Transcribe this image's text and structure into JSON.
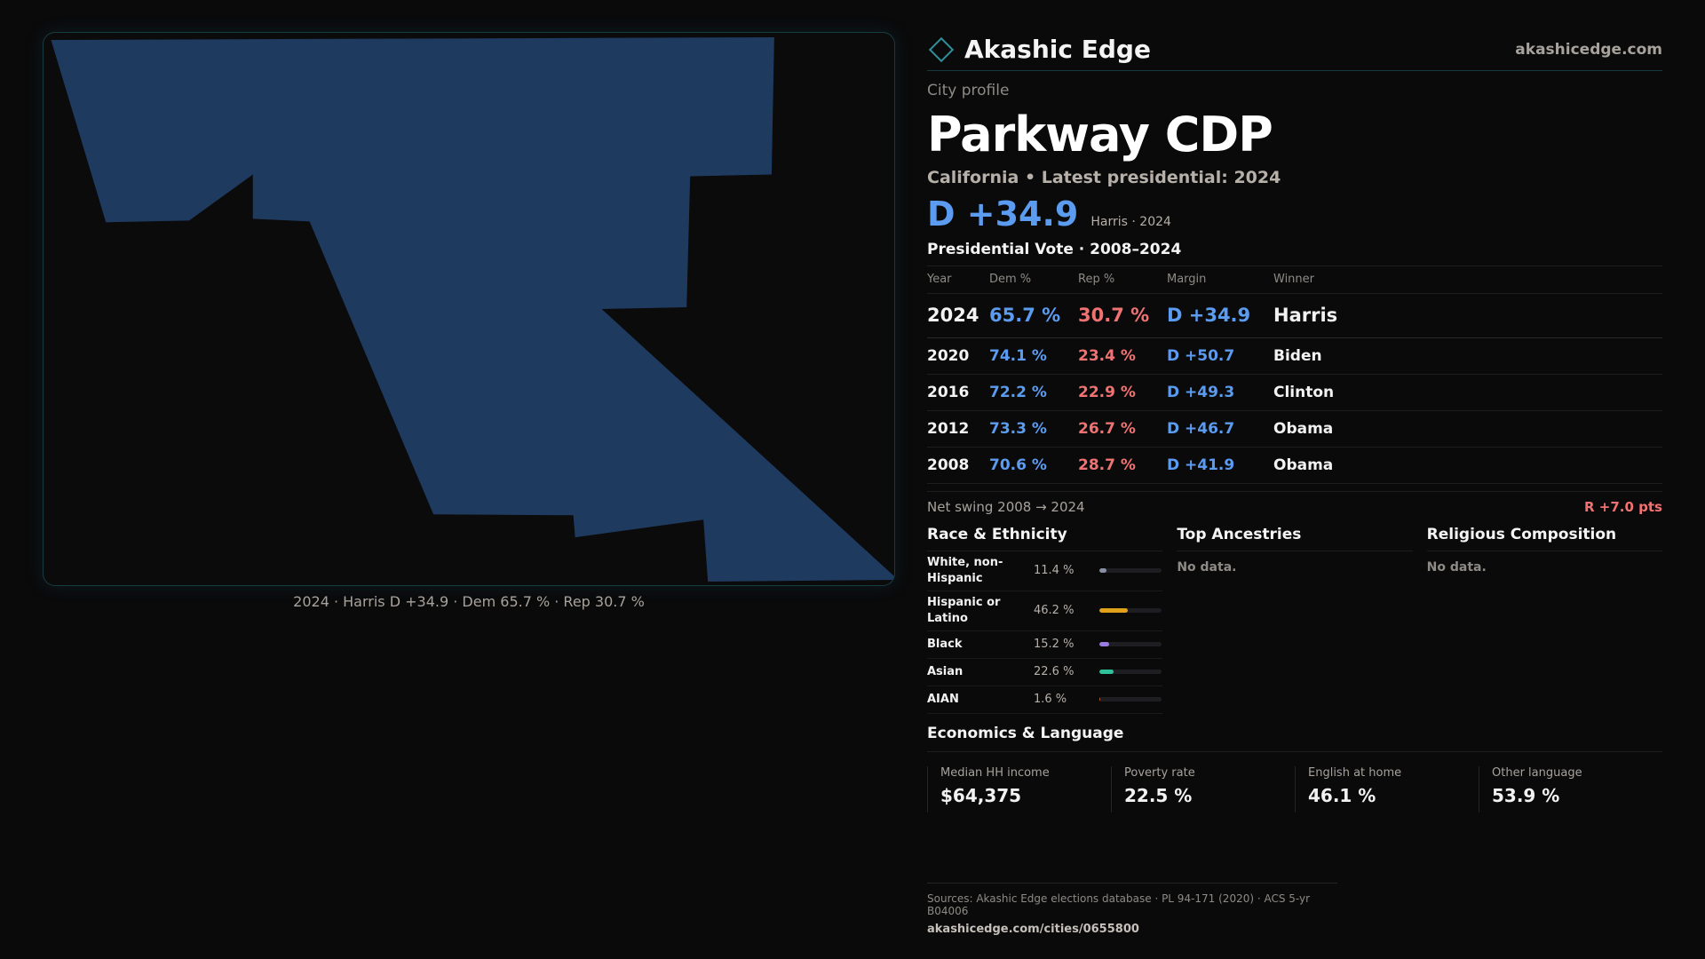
{
  "brand": {
    "name": "Akashic Edge",
    "url": "akashicedge.com",
    "icon": "diamond-logo-icon",
    "accent": "#2f8f9a"
  },
  "profile": {
    "eyebrow": "City profile",
    "title": "Parkway CDP",
    "subtitle": "California • Latest presidential: 2024",
    "headline_margin": "D +34.9",
    "headline_note": "Harris · 2024"
  },
  "map": {
    "caption": "2024 · Harris D +34.9 · Dem 65.7 % · Rep 30.7 %",
    "fill_color": "#1f3a5f"
  },
  "votes": {
    "title": "Presidential Vote · 2008–2024",
    "headers": {
      "year": "Year",
      "dem": "Dem %",
      "rep": "Rep %",
      "margin": "Margin",
      "winner": "Winner"
    },
    "rows": [
      {
        "year": "2024",
        "dem": "65.7 %",
        "rep": "30.7 %",
        "margin": "D +34.9",
        "winner": "Harris"
      },
      {
        "year": "2020",
        "dem": "74.1 %",
        "rep": "23.4 %",
        "margin": "D +50.7",
        "winner": "Biden"
      },
      {
        "year": "2016",
        "dem": "72.2 %",
        "rep": "22.9 %",
        "margin": "D +49.3",
        "winner": "Clinton"
      },
      {
        "year": "2012",
        "dem": "73.3 %",
        "rep": "26.7 %",
        "margin": "D +46.7",
        "winner": "Obama"
      },
      {
        "year": "2008",
        "dem": "70.6 %",
        "rep": "28.7 %",
        "margin": "D +41.9",
        "winner": "Obama"
      }
    ],
    "swing_label": "Net swing 2008 → 2024",
    "swing_value": "R +7.0 pts",
    "colors": {
      "dem": "#5b9cf0",
      "rep": "#f07272"
    }
  },
  "race": {
    "title": "Race & Ethnicity",
    "rows": [
      {
        "label": "White, non-Hispanic",
        "pct": "11.4 %",
        "value": 11.4,
        "color": "#8a8fa3"
      },
      {
        "label": "Hispanic or Latino",
        "pct": "46.2 %",
        "value": 46.2,
        "color": "#e0a11b"
      },
      {
        "label": "Black",
        "pct": "15.2 %",
        "value": 15.2,
        "color": "#9a7be0"
      },
      {
        "label": "Asian",
        "pct": "22.6 %",
        "value": 22.6,
        "color": "#2fc29a"
      },
      {
        "label": "AIAN",
        "pct": "1.6 %",
        "value": 1.6,
        "color": "#c26a2f"
      }
    ]
  },
  "ancestries": {
    "title": "Top Ancestries",
    "empty": "No data."
  },
  "religion": {
    "title": "Religious Composition",
    "empty": "No data."
  },
  "economics": {
    "title": "Economics & Language",
    "cells": [
      {
        "label": "Median HH income",
        "value": "$64,375"
      },
      {
        "label": "Poverty rate",
        "value": "22.5 %"
      },
      {
        "label": "English at home",
        "value": "46.1 %"
      },
      {
        "label": "Other language",
        "value": "53.9 %"
      }
    ]
  },
  "footer": {
    "sources": "Sources: Akashic Edge elections database · PL 94-171 (2020) · ACS 5-yr B04006",
    "url": "akashicedge.com/cities/0655800"
  }
}
